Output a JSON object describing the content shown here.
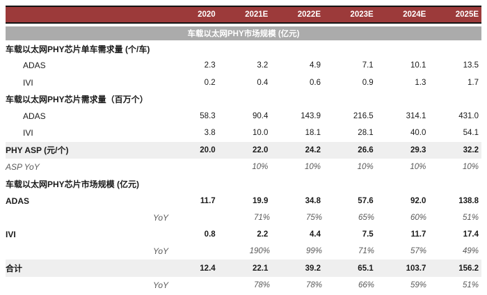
{
  "colors": {
    "header_bg": "#9C3A3A",
    "subtitle_bg": "#ABABAB",
    "shaded_row_bg": "#EFEFEF",
    "rule": "#141414"
  },
  "table": {
    "header": {
      "columns": [
        "2020",
        "2021E",
        "2022E",
        "2023E",
        "2024E",
        "2025E"
      ]
    },
    "subtitle": "车载以太网PHY市场规模 (亿元)",
    "rows": [
      {
        "label": "车载以太网PHY芯片单车需求量 (个/车)",
        "style": "section",
        "values": [
          "",
          "",
          "",
          "",
          "",
          ""
        ]
      },
      {
        "label": "ADAS",
        "style": "indent",
        "values": [
          "2.3",
          "3.2",
          "4.9",
          "7.1",
          "10.1",
          "13.5"
        ]
      },
      {
        "label": "IVI",
        "style": "indent",
        "values": [
          "0.2",
          "0.4",
          "0.6",
          "0.9",
          "1.3",
          "1.7"
        ]
      },
      {
        "label": "车载以太网PHY芯片需求量（百万个）",
        "style": "section",
        "values": [
          "",
          "",
          "",
          "",
          "",
          ""
        ]
      },
      {
        "label": "ADAS",
        "style": "indent",
        "values": [
          "58.3",
          "90.4",
          "143.9",
          "216.5",
          "314.1",
          "431.0"
        ]
      },
      {
        "label": "IVI",
        "style": "indent",
        "values": [
          "3.8",
          "10.0",
          "18.1",
          "28.1",
          "40.0",
          "54.1"
        ]
      },
      {
        "label": "PHY ASP (元/个)",
        "style": "bold shaded",
        "values": [
          "20.0",
          "22.0",
          "24.2",
          "26.6",
          "29.3",
          "32.2"
        ]
      },
      {
        "label": "ASP YoY",
        "style": "italic",
        "values": [
          "",
          "10%",
          "10%",
          "10%",
          "10%",
          "10%"
        ]
      },
      {
        "label": "车载以太网PHY芯片市场规模 (亿元)",
        "style": "section",
        "values": [
          "",
          "",
          "",
          "",
          "",
          ""
        ]
      },
      {
        "label": "ADAS",
        "style": "bold",
        "values": [
          "11.7",
          "19.9",
          "34.8",
          "57.6",
          "92.0",
          "138.8"
        ]
      },
      {
        "label": "YoY",
        "style": "italic yoy",
        "values": [
          "",
          "71%",
          "75%",
          "65%",
          "60%",
          "51%"
        ]
      },
      {
        "label": "IVI",
        "style": "bold",
        "values": [
          "0.8",
          "2.2",
          "4.4",
          "7.5",
          "11.7",
          "17.4"
        ]
      },
      {
        "label": "YoY",
        "style": "italic yoy",
        "values": [
          "",
          "190%",
          "99%",
          "71%",
          "57%",
          "49%"
        ]
      },
      {
        "label": "合计",
        "style": "bold shaded",
        "values": [
          "12.4",
          "22.1",
          "39.2",
          "65.1",
          "103.7",
          "156.2"
        ]
      },
      {
        "label": "YoY",
        "style": "italic yoy",
        "values": [
          "",
          "78%",
          "78%",
          "66%",
          "59%",
          "51%"
        ]
      }
    ]
  }
}
